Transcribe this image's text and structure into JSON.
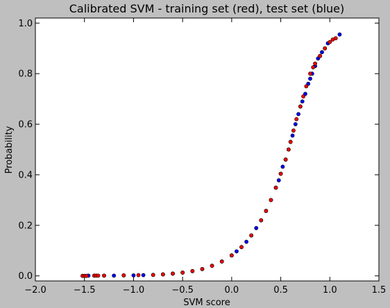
{
  "chart_data": {
    "type": "scatter",
    "title": "Calibrated SVM - training set (red), test set (blue)",
    "xlabel": "SVM score",
    "ylabel": "Probability",
    "xlim": [
      -2.0,
      1.5
    ],
    "ylim": [
      -0.02,
      1.02
    ],
    "xticks": [
      -2.0,
      -1.5,
      -1.0,
      -0.5,
      0.0,
      0.5,
      1.0,
      1.5
    ],
    "xtick_labels": [
      "−2.0",
      "−1.5",
      "−1.0",
      "−0.5",
      "0.0",
      "0.5",
      "1.0",
      "1.5"
    ],
    "yticks": [
      0.0,
      0.2,
      0.4,
      0.6,
      0.8,
      1.0
    ],
    "ytick_labels": [
      "0.0",
      "0.2",
      "0.4",
      "0.6",
      "0.8",
      "1.0"
    ],
    "grid": false,
    "colors": {
      "training": "#ff0000",
      "test": "#0000ff",
      "background": "#bfbfbf",
      "plot_area": "#ffffff"
    },
    "series": [
      {
        "name": "training set",
        "color": "#ff0000",
        "x": [
          -1.52,
          -1.5,
          -1.48,
          -1.4,
          -1.38,
          -1.36,
          -1.3,
          -1.1,
          -0.95,
          -0.8,
          -0.7,
          -0.6,
          -0.5,
          -0.4,
          -0.3,
          -0.2,
          -0.1,
          0.0,
          0.1,
          0.2,
          0.3,
          0.35,
          0.4,
          0.45,
          0.5,
          0.55,
          0.58,
          0.6,
          0.63,
          0.66,
          0.7,
          0.73,
          0.76,
          0.8,
          0.83,
          0.85,
          0.9,
          0.95,
          1.0,
          1.03,
          1.06
        ],
        "y": [
          0.0,
          0.0,
          0.0,
          0.001,
          0.001,
          0.001,
          0.001,
          0.002,
          0.003,
          0.004,
          0.006,
          0.009,
          0.013,
          0.019,
          0.027,
          0.04,
          0.057,
          0.081,
          0.114,
          0.16,
          0.22,
          0.257,
          0.3,
          0.349,
          0.404,
          0.46,
          0.5,
          0.53,
          0.575,
          0.62,
          0.67,
          0.71,
          0.75,
          0.8,
          0.825,
          0.84,
          0.87,
          0.9,
          0.925,
          0.935,
          0.94
        ]
      },
      {
        "name": "test set",
        "color": "#0000ff",
        "x": [
          -1.46,
          -1.4,
          -1.3,
          -1.2,
          -1.1,
          -1.0,
          -0.9,
          -0.8,
          -0.7,
          -0.6,
          -0.5,
          -0.4,
          -0.3,
          -0.2,
          -0.1,
          0.0,
          0.05,
          0.1,
          0.15,
          0.2,
          0.25,
          0.3,
          0.35,
          0.4,
          0.45,
          0.48,
          0.5,
          0.52,
          0.55,
          0.58,
          0.6,
          0.62,
          0.65,
          0.68,
          0.7,
          0.72,
          0.75,
          0.78,
          0.8,
          0.82,
          0.85,
          0.88,
          0.9,
          0.92,
          0.95,
          0.98,
          1.1
        ],
        "y": [
          0.001,
          0.001,
          0.001,
          0.001,
          0.002,
          0.002,
          0.003,
          0.004,
          0.006,
          0.009,
          0.013,
          0.019,
          0.027,
          0.04,
          0.057,
          0.081,
          0.097,
          0.114,
          0.135,
          0.16,
          0.189,
          0.22,
          0.257,
          0.3,
          0.349,
          0.378,
          0.404,
          0.432,
          0.46,
          0.5,
          0.53,
          0.555,
          0.6,
          0.64,
          0.67,
          0.69,
          0.72,
          0.76,
          0.78,
          0.8,
          0.83,
          0.86,
          0.87,
          0.885,
          0.9,
          0.92,
          0.955
        ]
      }
    ]
  }
}
